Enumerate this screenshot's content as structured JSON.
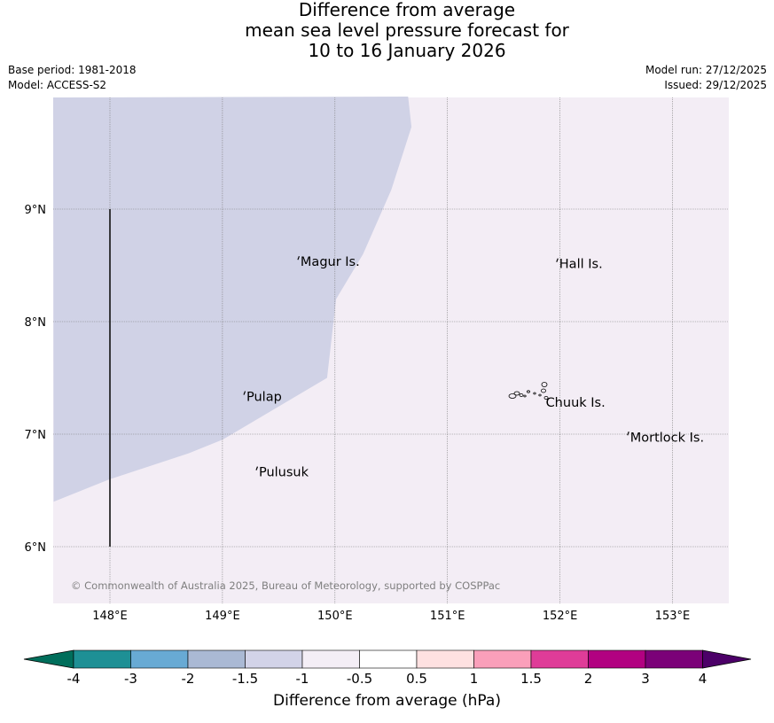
{
  "title": {
    "line1": "Difference from average",
    "line2": "mean sea level pressure forecast for",
    "line3": "10 to 16 January 2026"
  },
  "meta": {
    "base_period": "Base period: 1981-2018",
    "model": "Model: ACCESS-S2",
    "model_run": "Model run: 27/12/2025",
    "issued": "Issued: 29/12/2025"
  },
  "map": {
    "lon_range": [
      147.5,
      153.5
    ],
    "lat_range": [
      5.5,
      10.0
    ],
    "lon_ticks": [
      148,
      149,
      150,
      151,
      152,
      153
    ],
    "lon_tick_labels": [
      "148°E",
      "149°E",
      "150°E",
      "151°E",
      "152°E",
      "153°E"
    ],
    "lat_ticks": [
      6,
      7,
      8,
      9
    ],
    "lat_tick_labels": [
      "6°N",
      "7°N",
      "8°N",
      "9°N"
    ],
    "islands": [
      {
        "name": "Magur Is.",
        "lon": 149.67,
        "lat": 8.55
      },
      {
        "name": "Hall Is.",
        "lon": 151.97,
        "lat": 8.53
      },
      {
        "name": "Pulap",
        "lon": 149.19,
        "lat": 7.35
      },
      {
        "name": "Chuuk Is.",
        "lon": 151.85,
        "lat": 7.3
      },
      {
        "name": "Mortlock Is.",
        "lon": 152.6,
        "lat": 6.99
      },
      {
        "name": "Pulusuk",
        "lon": 149.3,
        "lat": 6.68
      }
    ],
    "region_boundary": {
      "lon": 148.0,
      "lat": [
        6.0,
        9.0
      ]
    },
    "anomaly_fill": {
      "outside": "-0.5 to -1 hPa",
      "inside": "-1 to -1.5 hPa",
      "inside_color": "#d0d2e6",
      "outside_color": "#f3edf5",
      "boundary": [
        [
          147.5,
          6.4
        ],
        [
          148.0,
          6.6
        ],
        [
          148.7,
          6.83
        ],
        [
          149.0,
          6.95
        ],
        [
          149.93,
          7.5
        ],
        [
          149.97,
          7.85
        ],
        [
          150.01,
          8.2
        ],
        [
          150.25,
          8.6
        ],
        [
          150.5,
          9.17
        ],
        [
          150.68,
          9.73
        ],
        [
          150.65,
          10.0
        ]
      ]
    },
    "copyright": "© Commonwealth of Australia 2025, Bureau of Meteorology, supported by COSPPac"
  },
  "colorbar": {
    "label": "Difference from average (hPa)",
    "tick_labels": [
      "-4",
      "-3",
      "-2",
      "-1.5",
      "-1",
      "-0.5",
      "0.5",
      "1",
      "1.5",
      "2",
      "3",
      "4"
    ],
    "under_color": "#006e5b",
    "over_color": "#4c0068",
    "colors": [
      "#1e9095",
      "#68aad4",
      "#aab9d4",
      "#d2d3e8",
      "#f4eef6",
      "#ffffff",
      "#fee1e1",
      "#fa9fba",
      "#df3c98",
      "#b20181",
      "#7b0178"
    ]
  }
}
